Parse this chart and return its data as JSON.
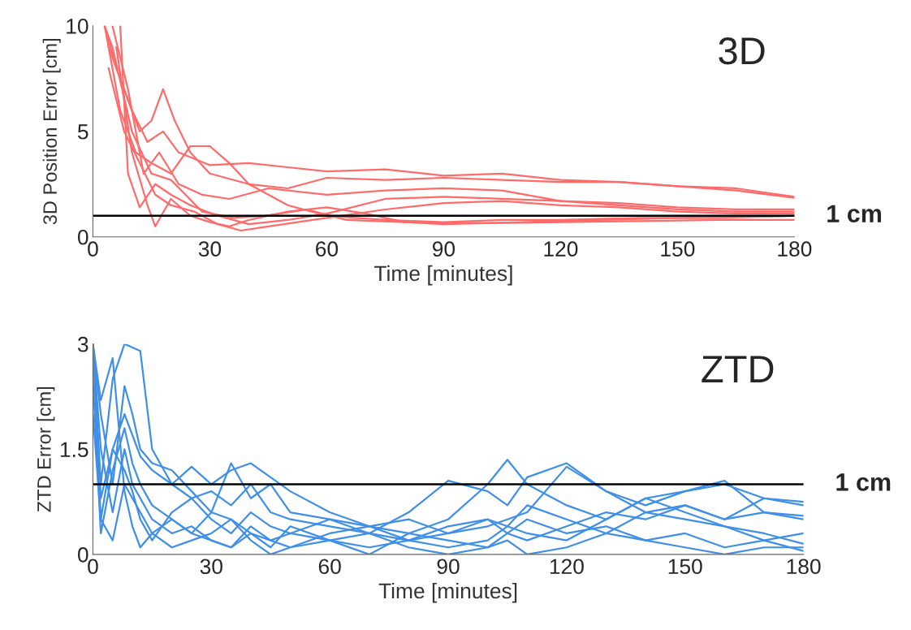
{
  "chart_data": [
    {
      "type": "line",
      "title": "3D",
      "xlabel": "Time [minutes]",
      "ylabel": "3D Position Error [cm]",
      "xlim": [
        0,
        180
      ],
      "xticks": [
        0,
        30,
        60,
        90,
        120,
        150,
        180
      ],
      "ylim": [
        0,
        10
      ],
      "yticks": [
        0,
        5,
        10
      ],
      "grid": false,
      "legend": false,
      "ref_lines": [
        {
          "axis": "y",
          "value": 1,
          "label": "1 cm",
          "color": "#000000"
        }
      ],
      "series": [
        {
          "color": "#ff6b6b",
          "x": [
            3,
            6,
            10,
            14,
            18,
            22,
            30,
            40,
            50,
            60,
            75,
            90,
            105,
            120,
            135,
            150,
            165,
            180
          ],
          "values": [
            10,
            8,
            6,
            4.5,
            5,
            4,
            3.4,
            3.5,
            3.3,
            3.1,
            3.2,
            2.9,
            3.0,
            2.7,
            2.6,
            2.4,
            2.3,
            1.9
          ]
        },
        {
          "color": "#ff6b6b",
          "x": [
            4,
            8,
            12,
            15,
            18,
            21,
            25,
            30,
            40,
            50,
            60,
            75,
            90,
            105,
            120,
            135,
            150,
            165,
            180
          ],
          "values": [
            9,
            7,
            5,
            5.5,
            7,
            5.5,
            4,
            3,
            2.5,
            2.3,
            2.8,
            2.7,
            2.8,
            2.7,
            2.6,
            2.6,
            2.4,
            2.2,
            1.85
          ]
        },
        {
          "color": "#ff6b6b",
          "x": [
            3,
            7,
            11,
            15,
            20,
            25,
            30,
            35,
            40,
            50,
            60,
            75,
            90,
            105,
            120,
            140,
            160,
            180
          ],
          "values": [
            10,
            6,
            4,
            3.5,
            3,
            4.3,
            4.3,
            3.5,
            2.5,
            1.5,
            1.0,
            0.8,
            0.7,
            0.8,
            0.8,
            0.9,
            0.9,
            1.0
          ]
        },
        {
          "color": "#ff6b6b",
          "x": [
            5,
            9,
            13,
            17,
            22,
            28,
            35,
            45,
            60,
            75,
            90,
            105,
            120,
            135,
            150,
            165,
            180
          ],
          "values": [
            10,
            7,
            3,
            4,
            2.5,
            2,
            1.8,
            2.3,
            2.0,
            2.2,
            2.3,
            2.2,
            1.7,
            1.5,
            1.3,
            1.2,
            1.2
          ]
        },
        {
          "color": "#ff6b6b",
          "x": [
            4,
            8,
            12,
            16,
            20,
            26,
            32,
            38,
            45,
            60,
            75,
            90,
            105,
            120,
            135,
            150,
            165,
            180
          ],
          "values": [
            8,
            5,
            3.5,
            2,
            1.5,
            1.2,
            0.6,
            0.3,
            0.5,
            0.9,
            1.3,
            1.6,
            1.7,
            1.5,
            1.4,
            1.2,
            1.1,
            1.1
          ]
        },
        {
          "color": "#ff6b6b",
          "x": [
            6,
            10,
            14,
            16,
            20,
            25,
            30,
            35,
            40,
            50,
            60,
            70,
            80,
            90,
            110,
            130,
            150,
            180
          ],
          "values": [
            9,
            4,
            1.5,
            0.5,
            1.8,
            1.0,
            0.7,
            0.5,
            0.8,
            1.2,
            1.4,
            1.1,
            0.7,
            0.6,
            0.7,
            0.8,
            0.9,
            1.0
          ]
        },
        {
          "color": "#ff6b6b",
          "x": [
            7,
            9,
            12,
            16,
            20,
            25,
            32,
            40,
            50,
            60,
            75,
            90,
            105,
            120,
            135,
            150,
            165,
            180
          ],
          "values": [
            10,
            3,
            1.4,
            2.5,
            2,
            1.5,
            1,
            0.6,
            0.8,
            1.1,
            1.8,
            1.9,
            1.8,
            1.7,
            1.6,
            1.4,
            1.3,
            1.3
          ]
        },
        {
          "color": "#ff6b6b",
          "x": [
            3,
            5,
            10,
            15,
            20,
            28,
            36,
            44,
            55,
            65,
            80,
            100,
            120,
            140,
            160,
            180
          ],
          "values": [
            10,
            9,
            5,
            3,
            2.7,
            1.2,
            0.9,
            1.0,
            1.3,
            0.8,
            0.7,
            0.65,
            0.7,
            0.75,
            0.8,
            0.8
          ]
        }
      ]
    },
    {
      "type": "line",
      "title": "ZTD",
      "xlabel": "Time [minutes]",
      "ylabel": "ZTD Error [cm]",
      "xlim": [
        0,
        180
      ],
      "xticks": [
        0,
        30,
        60,
        90,
        120,
        150,
        180
      ],
      "ylim": [
        0,
        3
      ],
      "yticks": [
        0,
        1.5,
        3
      ],
      "grid": false,
      "legend": false,
      "ref_lines": [
        {
          "axis": "y",
          "value": 1,
          "label": "1 cm",
          "color": "#000000"
        }
      ],
      "x": [
        0,
        2,
        5,
        8,
        10,
        12,
        15,
        20,
        25,
        30,
        35,
        40,
        45,
        50,
        60,
        70,
        80,
        90,
        100,
        105,
        110,
        120,
        130,
        140,
        150,
        160,
        170,
        180
      ],
      "series": [
        {
          "color": "#3f8fe8",
          "values": [
            3,
            1,
            2.5,
            3,
            2.95,
            2.9,
            1.5,
            1.0,
            1.25,
            1.0,
            1.2,
            1.3,
            1.1,
            0.9,
            0.6,
            0.4,
            0.3,
            0.5,
            1.0,
            1.35,
            1.0,
            0.7,
            0.5,
            0.8,
            0.9,
            1.0,
            0.8,
            0.7
          ]
        },
        {
          "color": "#3f8fe8",
          "values": [
            3,
            0.5,
            1.5,
            2.0,
            1.7,
            1.4,
            1.2,
            1.0,
            0.8,
            0.9,
            0.7,
            1.0,
            0.6,
            0.5,
            0.4,
            0.3,
            0.6,
            1.05,
            0.9,
            0.7,
            1.1,
            1.3,
            0.9,
            0.7,
            0.9,
            1.05,
            0.6,
            0.5
          ]
        },
        {
          "color": "#3f8fe8",
          "values": [
            3,
            2,
            1.0,
            2.4,
            2.0,
            1.5,
            1.3,
            1.2,
            0.9,
            0.6,
            1.3,
            0.8,
            1.0,
            0.6,
            0.5,
            0.3,
            0.2,
            0.3,
            0.4,
            0.5,
            0.6,
            1.25,
            0.9,
            0.6,
            0.5,
            0.4,
            0.3,
            0.15
          ]
        },
        {
          "color": "#3f8fe8",
          "values": [
            2.5,
            0.3,
            1.2,
            1.8,
            1.3,
            1.0,
            0.7,
            0.5,
            0.3,
            0.6,
            0.5,
            0.3,
            0.2,
            0.3,
            0.2,
            0.1,
            0.2,
            0.4,
            0.5,
            0.3,
            0.2,
            0.4,
            0.6,
            0.5,
            0.7,
            0.5,
            0.8,
            0.75
          ]
        },
        {
          "color": "#3f8fe8",
          "values": [
            3,
            1.5,
            0.6,
            1.5,
            1.0,
            0.8,
            0.5,
            0.3,
            0.4,
            0.2,
            0.1,
            0.4,
            0.2,
            0.1,
            0.3,
            0.4,
            0.2,
            0.1,
            0.2,
            0.4,
            0.3,
            0.2,
            0.5,
            0.8,
            0.6,
            0.4,
            0.2,
            0.05
          ]
        },
        {
          "color": "#3f8fe8",
          "values": [
            2,
            0.5,
            0.2,
            1.0,
            0.8,
            0.6,
            0.3,
            0.1,
            0.2,
            0.3,
            0.5,
            0.2,
            0.0,
            0.1,
            0.2,
            0.3,
            0.1,
            0.0,
            0.1,
            0.2,
            0.0,
            0.1,
            0.3,
            0.2,
            0.1,
            0.0,
            0.1,
            0.1
          ]
        },
        {
          "color": "#3f8fe8",
          "values": [
            3,
            0.8,
            1.5,
            1.2,
            0.9,
            0.5,
            0.2,
            0.6,
            0.8,
            0.5,
            0.3,
            0.6,
            0.4,
            0.3,
            0.5,
            0.4,
            0.5,
            0.3,
            0.5,
            0.4,
            0.7,
            0.5,
            0.3,
            0.6,
            0.7,
            0.5,
            0.6,
            0.55
          ]
        },
        {
          "color": "#3f8fe8",
          "values": [
            3,
            2.2,
            2.8,
            0.9,
            0.4,
            0.1,
            0.3,
            0.5,
            0.3,
            0.2,
            0.1,
            0.3,
            0.1,
            0.4,
            0.2,
            0.0,
            0.3,
            0.2,
            0.1,
            0.3,
            0.5,
            0.3,
            0.4,
            0.2,
            0.3,
            0.1,
            0.2,
            0.3
          ]
        }
      ]
    }
  ]
}
